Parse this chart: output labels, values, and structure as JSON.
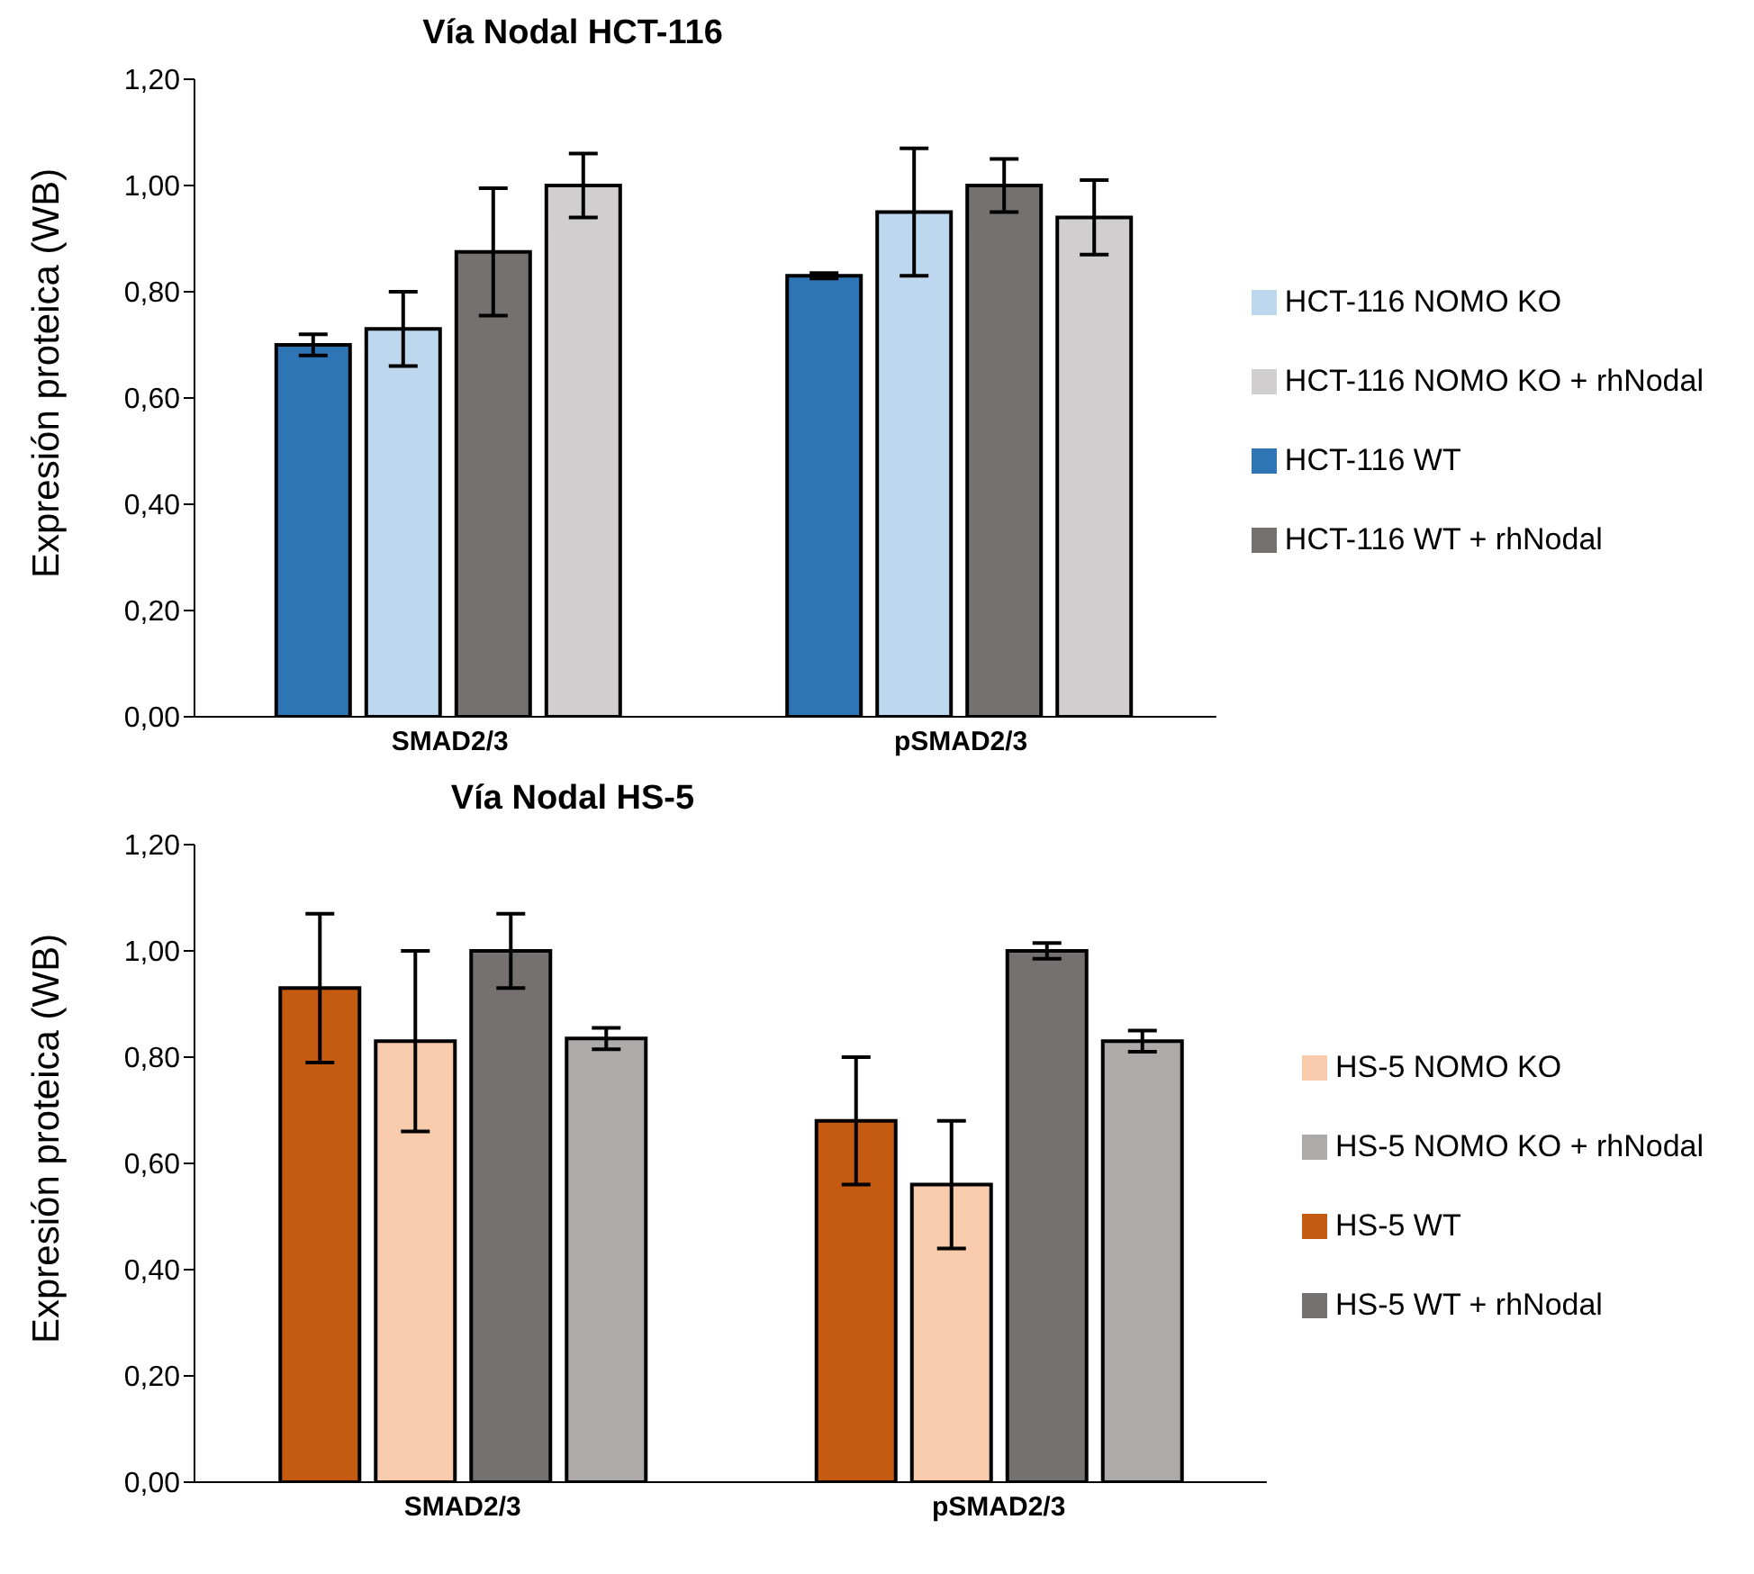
{
  "chart_data": [
    {
      "type": "bar",
      "title": "Vía Nodal HCT-116",
      "ylabel": "Expresión proteica (WB)",
      "categories": [
        "SMAD2/3",
        "pSMAD2/3"
      ],
      "ylim": [
        0,
        1.2
      ],
      "yticks": [
        {
          "value": 0,
          "label": "0,00"
        },
        {
          "value": 0.2,
          "label": "0,20"
        },
        {
          "value": 0.4,
          "label": "0,40"
        },
        {
          "value": 0.6,
          "label": "0,60"
        },
        {
          "value": 0.8,
          "label": "0,80"
        },
        {
          "value": 1,
          "label": "1,00"
        },
        {
          "value": 1.2,
          "label": "1,20"
        }
      ],
      "grid": false,
      "legend": "right",
      "series": [
        {
          "name": "HCT-116 WT",
          "color": "#2e75b6",
          "values": [
            0.7,
            0.83
          ],
          "errors": [
            0.02,
            0.005
          ]
        },
        {
          "name": "HCT-116 NOMO KO",
          "color": "#bdd7ee",
          "values": [
            0.73,
            0.95
          ],
          "errors": [
            0.07,
            0.12
          ]
        },
        {
          "name": "HCT-116 WT + rhNodal",
          "color": "#767171",
          "values": [
            0.875,
            1.0
          ],
          "errors": [
            0.12,
            0.05
          ]
        },
        {
          "name": "HCT-116 NOMO KO + rhNodal",
          "color": "#d0cece",
          "values": [
            1.0,
            0.94
          ],
          "errors": [
            0.06,
            0.07
          ]
        }
      ]
    },
    {
      "type": "bar",
      "title": "Vía Nodal HS-5",
      "ylabel": "Expresión proteica (WB)",
      "categories": [
        "SMAD2/3",
        "pSMAD2/3"
      ],
      "ylim": [
        0,
        1.2
      ],
      "yticks": [
        {
          "value": 0,
          "label": "0,00"
        },
        {
          "value": 0.2,
          "label": "0,20"
        },
        {
          "value": 0.4,
          "label": "0,40"
        },
        {
          "value": 0.6,
          "label": "0,60"
        },
        {
          "value": 0.8,
          "label": "0,80"
        },
        {
          "value": 1,
          "label": "1,00"
        },
        {
          "value": 1.2,
          "label": "1,20"
        }
      ],
      "grid": false,
      "legend": "right",
      "series": [
        {
          "name": "HS-5 WT",
          "color": "#c55a11",
          "values": [
            0.93,
            0.68
          ],
          "errors": [
            0.14,
            0.12
          ]
        },
        {
          "name": "HS-5 NOMO KO",
          "color": "#f8cbad",
          "values": [
            0.83,
            0.56
          ],
          "errors": [
            0.17,
            0.12
          ]
        },
        {
          "name": "HS-5 WT + rhNodal",
          "color": "#767171",
          "values": [
            1.0,
            1.0
          ],
          "errors": [
            0.07,
            0.015
          ]
        },
        {
          "name": "HS-5 NOMO KO + rhNodal",
          "color": "#aeaaaa",
          "values": [
            0.835,
            0.83
          ],
          "errors": [
            0.02,
            0.02
          ]
        }
      ]
    }
  ]
}
